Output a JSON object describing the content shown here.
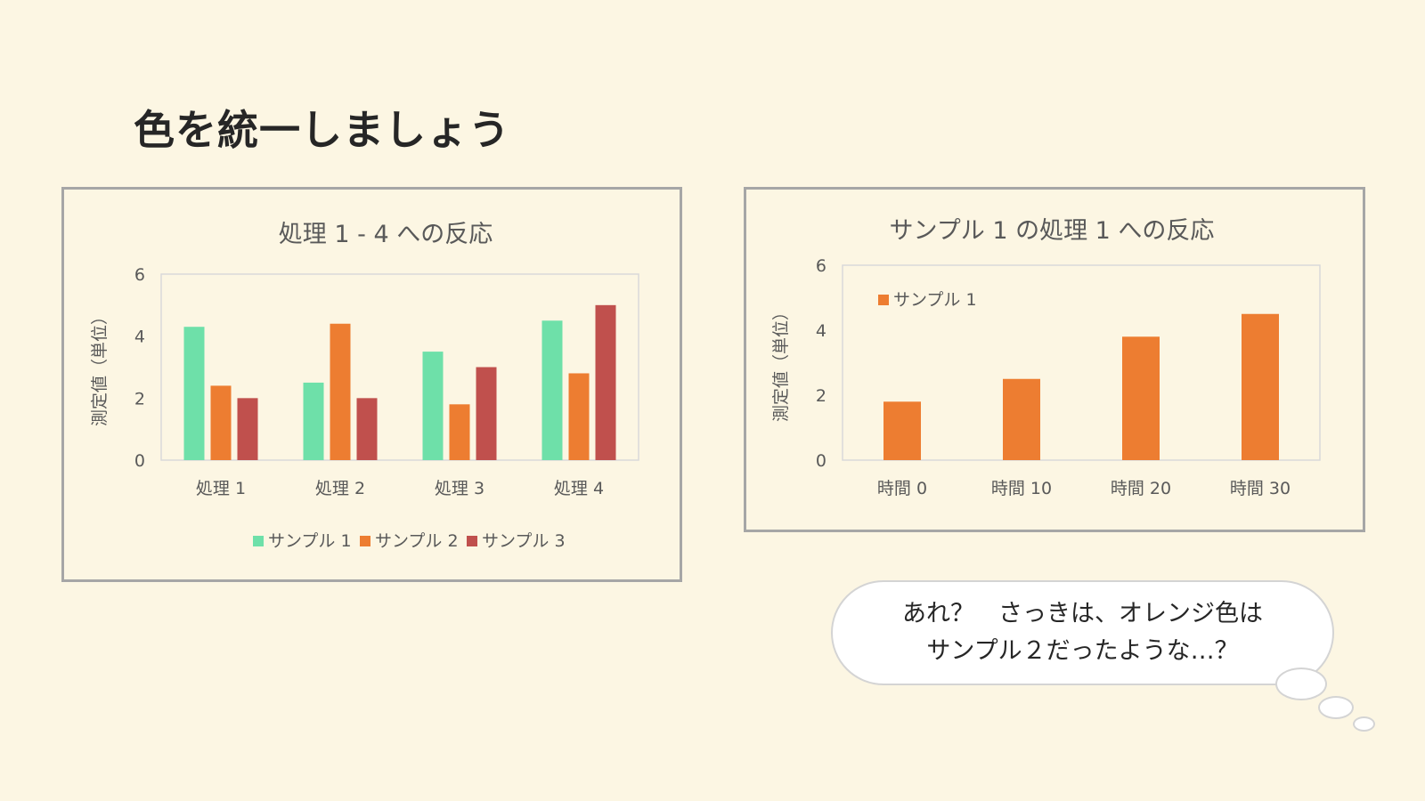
{
  "slide": {
    "title": "色を統一しましょう"
  },
  "chart_data": [
    {
      "type": "bar",
      "title": "処理 1 - 4 への反応",
      "xlabel": "",
      "ylabel": "測定値（単位）",
      "categories": [
        "処理 1",
        "処理 2",
        "処理 3",
        "処理 4"
      ],
      "series": [
        {
          "name": "サンプル 1",
          "color": "#6ee0a9",
          "values": [
            4.3,
            2.5,
            3.5,
            4.5
          ]
        },
        {
          "name": "サンプル 2",
          "color": "#ed7d31",
          "values": [
            2.4,
            4.4,
            1.8,
            2.8
          ]
        },
        {
          "name": "サンプル 3",
          "color": "#c0504d",
          "values": [
            2.0,
            2.0,
            3.0,
            5.0
          ]
        }
      ],
      "ylim": [
        0,
        6
      ],
      "yticks": [
        0,
        2,
        4,
        6
      ],
      "grid": false,
      "legend": "bottom"
    },
    {
      "type": "bar",
      "title": "サンプル 1 の処理 1 への反応",
      "xlabel": "",
      "ylabel": "測定値（単位）",
      "categories": [
        "時間 0",
        "時間 10",
        "時間 20",
        "時間 30"
      ],
      "series": [
        {
          "name": "サンプル 1",
          "color": "#ed7d31",
          "values": [
            1.8,
            2.5,
            3.8,
            4.5
          ]
        }
      ],
      "ylim": [
        0,
        6
      ],
      "yticks": [
        0,
        2,
        4,
        6
      ],
      "grid": false,
      "legend": "top-left"
    }
  ],
  "bubble": {
    "line1": "あれ？　さっきは、オレンジ色は",
    "line2": "サンプル２だったような…？"
  }
}
